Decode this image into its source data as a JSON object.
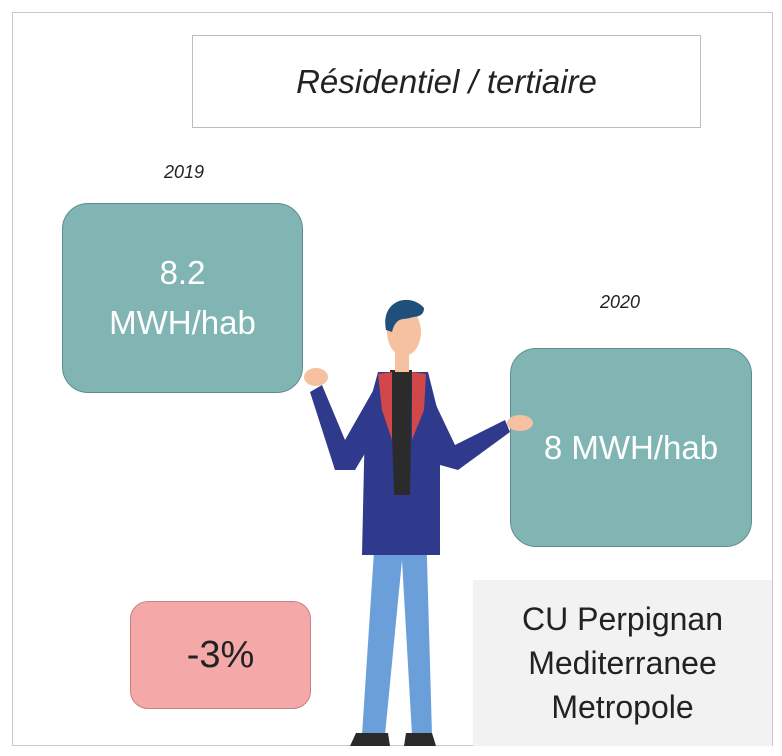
{
  "title": "Résidentiel / tertiaire",
  "before": {
    "year": "2019",
    "lines": [
      "8.2",
      "MWH/hab"
    ]
  },
  "after": {
    "year": "2020",
    "lines": [
      "8 MWH/hab"
    ]
  },
  "change": "-3%",
  "location": {
    "lines": [
      "CU Perpignan",
      "Mediterranee",
      "Metropole"
    ]
  }
}
